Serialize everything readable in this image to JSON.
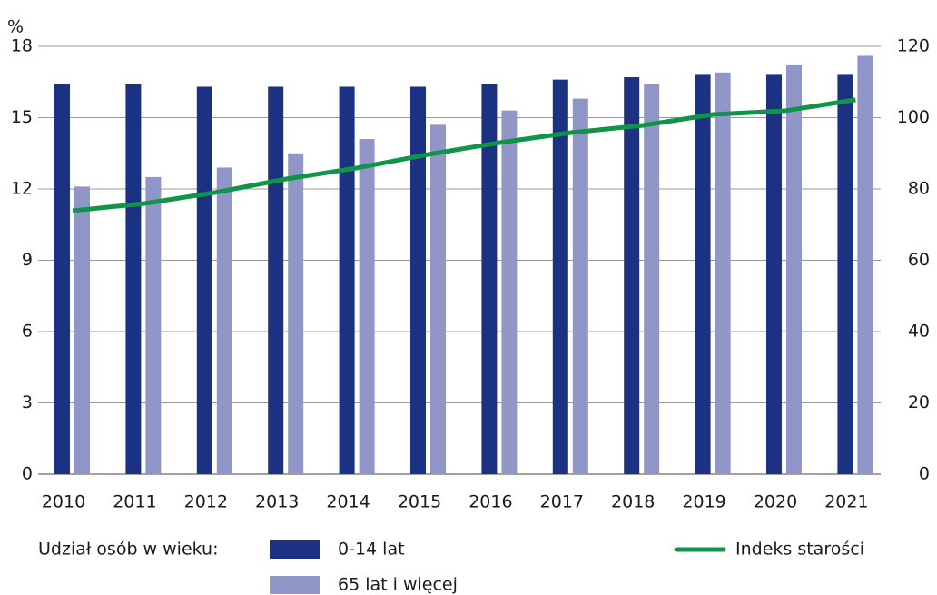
{
  "chart_data": {
    "type": "bar_line",
    "y_unit": "%",
    "categories": [
      "2010",
      "2011",
      "2012",
      "2013",
      "2014",
      "2015",
      "2016",
      "2017",
      "2018",
      "2019",
      "2020",
      "2021"
    ],
    "legend_title": "Udział osób w wieku:",
    "series": [
      {
        "name": "0-14 lat",
        "color": "#1b3282",
        "values": [
          16.4,
          16.4,
          16.3,
          16.3,
          16.3,
          16.3,
          16.4,
          16.6,
          16.7,
          16.8,
          16.8,
          16.8
        ]
      },
      {
        "name": "65 lat i więcej",
        "color": "#9196c8",
        "values": [
          12.1,
          12.5,
          12.9,
          13.5,
          14.1,
          14.7,
          15.3,
          15.8,
          16.4,
          16.9,
          17.2,
          17.6
        ]
      },
      {
        "name": "Indeks starości",
        "color": "#0f9448",
        "axis": "y2",
        "type": "line",
        "values": [
          73.9,
          75.9,
          79.0,
          82.8,
          85.9,
          89.7,
          93.0,
          95.8,
          97.8,
          100.9,
          101.9,
          105.0
        ]
      }
    ],
    "ylim": [
      0,
      18
    ],
    "yticks": [
      0,
      3,
      6,
      9,
      12,
      15,
      18
    ],
    "y2lim": [
      0,
      120
    ],
    "y2ticks": [
      0,
      20,
      40,
      60,
      80,
      100,
      120
    ],
    "grid": true
  }
}
